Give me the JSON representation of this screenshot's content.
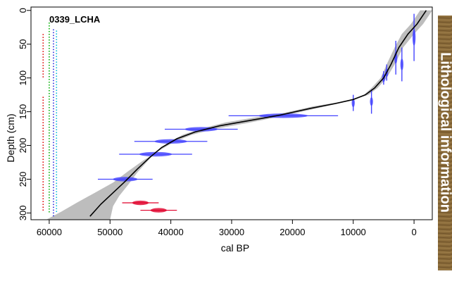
{
  "chart_data": {
    "type": "scatter",
    "title": "0339_LCHA",
    "xlabel": "cal BP",
    "ylabel": "Depth (cm)",
    "xlim": [
      63000,
      -3000
    ],
    "ylim": [
      310,
      -5
    ],
    "x_ticks": [
      "60000",
      "50000",
      "40000",
      "30000",
      "20000",
      "10000",
      "0"
    ],
    "y_ticks": [
      "0",
      "50",
      "100",
      "150",
      "200",
      "250",
      "300"
    ],
    "side_panel_label": "Lithological information",
    "age_model": {
      "median": [
        [
          -2000,
          0
        ],
        [
          -500,
          20
        ],
        [
          1000,
          35
        ],
        [
          2500,
          55
        ],
        [
          3800,
          80
        ],
        [
          5000,
          100
        ],
        [
          6500,
          115
        ],
        [
          8000,
          125
        ],
        [
          10000,
          132
        ],
        [
          13000,
          138
        ],
        [
          17000,
          145
        ],
        [
          22000,
          155
        ],
        [
          27000,
          163
        ],
        [
          32000,
          171
        ],
        [
          36000,
          180
        ],
        [
          39000,
          190
        ],
        [
          41500,
          203
        ],
        [
          43500,
          218
        ],
        [
          45500,
          235
        ],
        [
          47500,
          253
        ],
        [
          49500,
          270
        ],
        [
          51500,
          287
        ],
        [
          53300,
          305
        ]
      ],
      "range_upper": [
        [
          -3000,
          0
        ],
        [
          -1500,
          20
        ],
        [
          0,
          35
        ],
        [
          1800,
          55
        ],
        [
          3200,
          80
        ],
        [
          4500,
          100
        ],
        [
          6000,
          115
        ],
        [
          7500,
          125
        ],
        [
          9500,
          131
        ],
        [
          12500,
          136
        ],
        [
          16500,
          142
        ],
        [
          21500,
          152
        ],
        [
          26500,
          159
        ],
        [
          31000,
          166
        ],
        [
          35000,
          175
        ],
        [
          38000,
          184
        ],
        [
          40500,
          196
        ],
        [
          42500,
          210
        ],
        [
          44000,
          225
        ],
        [
          45500,
          240
        ],
        [
          47000,
          258
        ],
        [
          48500,
          275
        ],
        [
          49500,
          290
        ],
        [
          50000,
          310
        ]
      ],
      "range_lower": [
        [
          -1000,
          0
        ],
        [
          500,
          20
        ],
        [
          2000,
          35
        ],
        [
          3200,
          55
        ],
        [
          4500,
          80
        ],
        [
          5500,
          100
        ],
        [
          7000,
          115
        ],
        [
          8500,
          127
        ],
        [
          10500,
          134
        ],
        [
          13500,
          140
        ],
        [
          17500,
          148
        ],
        [
          22500,
          158
        ],
        [
          27500,
          167
        ],
        [
          32500,
          175
        ],
        [
          36500,
          184
        ],
        [
          39500,
          195
        ],
        [
          42000,
          208
        ],
        [
          44500,
          222
        ],
        [
          47000,
          238
        ],
        [
          49500,
          255
        ],
        [
          52500,
          270
        ],
        [
          55500,
          285
        ],
        [
          58000,
          298
        ],
        [
          60500,
          310
        ]
      ]
    },
    "dates": [
      {
        "age": 0,
        "depth": 40,
        "err": 35,
        "type": "calibrated"
      },
      {
        "age": 2000,
        "depth": 80,
        "err": 25,
        "type": "calibrated"
      },
      {
        "age": 3000,
        "depth": 70,
        "err": 25,
        "type": "calibrated"
      },
      {
        "age": 4500,
        "depth": 92,
        "err": 12,
        "type": "calibrated"
      },
      {
        "age": 5000,
        "depth": 100,
        "err": 10,
        "type": "calibrated"
      },
      {
        "age": 7000,
        "depth": 135,
        "err": 18,
        "type": "calibrated"
      },
      {
        "age": 10000,
        "depth": 137,
        "err": 12,
        "type": "calibrated"
      },
      {
        "age": 21500,
        "depth": 156,
        "err": 6,
        "type": "calibrated"
      },
      {
        "age": 35000,
        "depth": 176,
        "err": 4,
        "type": "calibrated"
      },
      {
        "age": 40000,
        "depth": 194,
        "err": 4,
        "type": "calibrated"
      },
      {
        "age": 42500,
        "depth": 213,
        "err": 4,
        "type": "calibrated"
      },
      {
        "age": 47500,
        "depth": 250,
        "err": 3,
        "type": "calibrated"
      },
      {
        "age": 45000,
        "depth": 285,
        "err": 2,
        "type": "outlier"
      },
      {
        "age": 42000,
        "depth": 296,
        "err": 2,
        "type": "outlier"
      }
    ],
    "depth_markers": [
      {
        "age": 61000,
        "from": 35,
        "to": 100,
        "color": "#dd0000"
      },
      {
        "age": 61000,
        "from": 128,
        "to": 297,
        "color": "#dd0000"
      },
      {
        "age": 60000,
        "from": 18,
        "to": 300,
        "color": "#00b000"
      },
      {
        "age": 59300,
        "from": 28,
        "to": 305,
        "color": "#2222dd"
      },
      {
        "age": 58800,
        "from": 30,
        "to": 300,
        "color": "#00b8d8"
      }
    ],
    "colors": {
      "range_fill": "#bdbdbd",
      "median_line": "#000000",
      "date_symbol": "#4444ff",
      "outlier_symbol": "#e0002a",
      "litho_panel": "#8a6b3a"
    }
  }
}
